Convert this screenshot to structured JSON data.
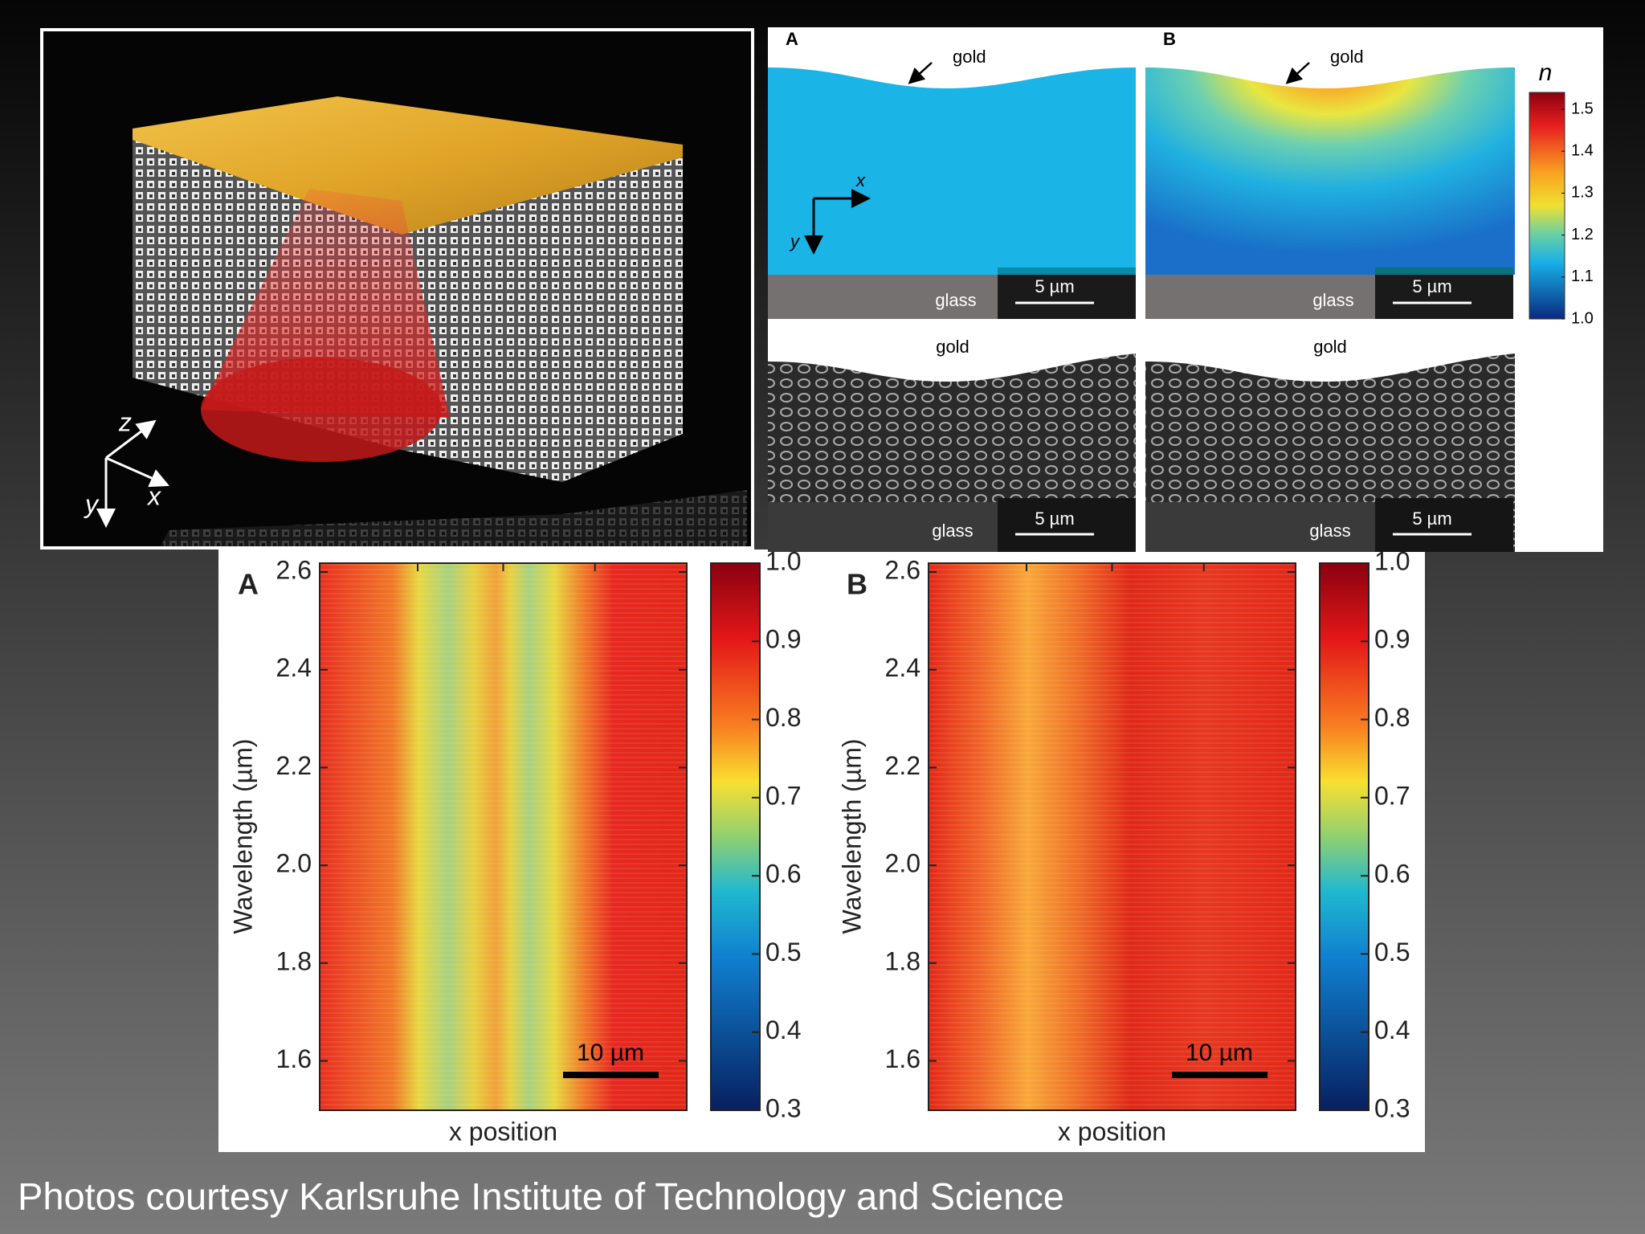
{
  "left_image": {
    "axes": [
      "z",
      "y",
      "x"
    ]
  },
  "simulation": {
    "panels": [
      {
        "label": "A",
        "gold": "gold",
        "glass": "glass",
        "scale": "5 µm",
        "axes": [
          "x",
          "y"
        ]
      },
      {
        "label": "B",
        "gold": "gold",
        "glass": "glass",
        "scale": "5 µm"
      }
    ],
    "colorbar": {
      "title": "n",
      "ticks": [
        "1.5",
        "1.4",
        "1.3",
        "1.2",
        "1.1",
        "1.0"
      ]
    }
  },
  "sem": [
    {
      "gold": "gold",
      "glass": "glass",
      "scale": "5 µm"
    },
    {
      "gold": "gold",
      "glass": "glass",
      "scale": "5 µm"
    }
  ],
  "maps": [
    {
      "label": "A",
      "y_label": "Wavelength (µm)",
      "y_ticks": [
        "2.6",
        "2.4",
        "2.2",
        "2.0",
        "1.8",
        "1.6"
      ],
      "x_label": "x position",
      "scale": "10 µm",
      "colorbar_ticks": [
        "1.0",
        "0.9",
        "0.8",
        "0.7",
        "0.6",
        "0.5",
        "0.4",
        "0.3"
      ]
    },
    {
      "label": "B",
      "y_label": "Wavelength (µm)",
      "y_ticks": [
        "2.6",
        "2.4",
        "2.2",
        "2.0",
        "1.8",
        "1.6"
      ],
      "x_label": "x position",
      "scale": "10 µm",
      "colorbar_ticks": [
        "1.0",
        "0.9",
        "0.8",
        "0.7",
        "0.6",
        "0.5",
        "0.4",
        "0.3"
      ]
    }
  ],
  "caption": "Photos courtesy Karlsruhe Institute of Technology and Science"
}
